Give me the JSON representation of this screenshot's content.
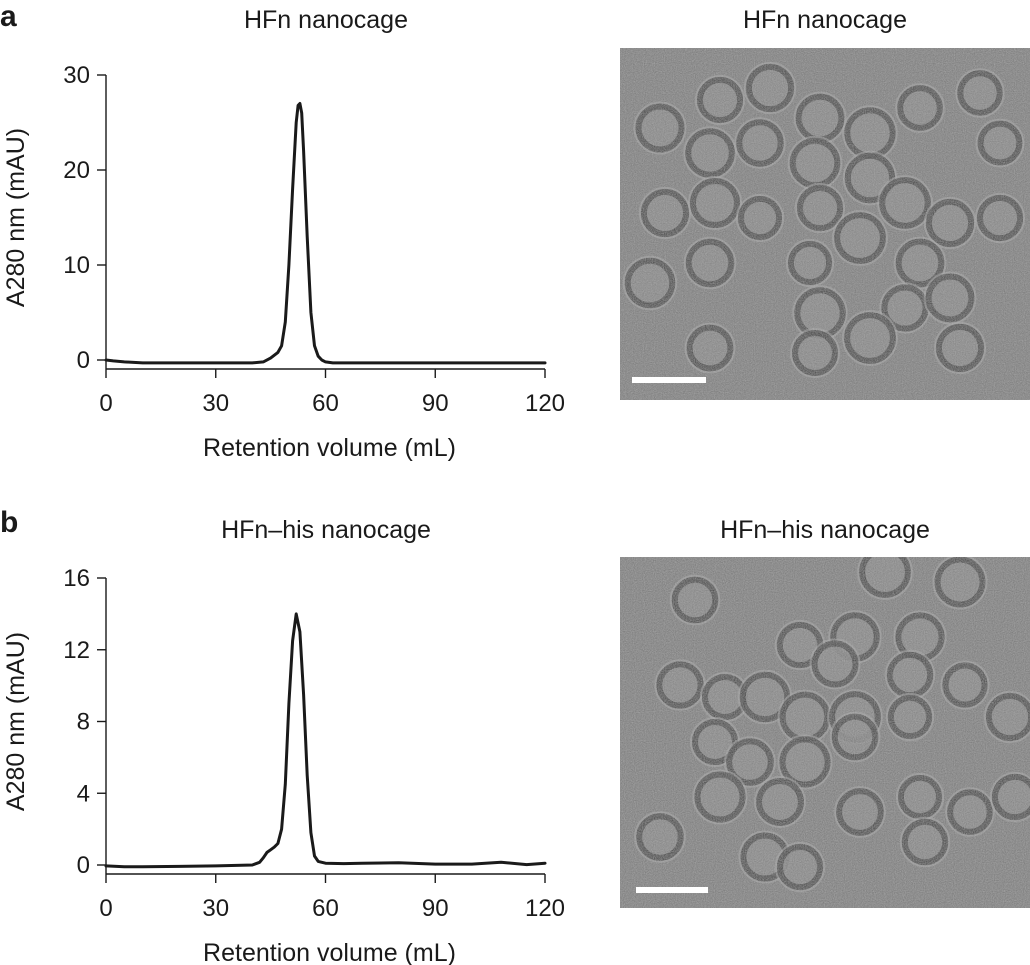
{
  "panels": [
    {
      "letter": "a",
      "chart_title": "HFn nanocage",
      "image_title": "HFn nanocage"
    },
    {
      "letter": "b",
      "chart_title": "HFn–his nanocage",
      "image_title": "HFn–his nanocage"
    }
  ],
  "chart_data": [
    {
      "type": "line",
      "title": "HFn nanocage",
      "xlabel": "Retention volume (mL)",
      "ylabel": "A280 nm (mAU)",
      "xlim": [
        0,
        120
      ],
      "ylim": [
        0,
        30
      ],
      "xticks": [
        "0",
        "30",
        "60",
        "90",
        "120"
      ],
      "yticks": [
        "0",
        "10",
        "20",
        "30"
      ],
      "grid": false,
      "series": [
        {
          "x": [
            0,
            2,
            5,
            10,
            20,
            30,
            40,
            43,
            45,
            47,
            48,
            49,
            50,
            51,
            52,
            52.5,
            53,
            53.5,
            54,
            55,
            56,
            57,
            58,
            59,
            60,
            62,
            70,
            80,
            90,
            100,
            110,
            120
          ],
          "y": [
            0,
            -0.1,
            -0.2,
            -0.3,
            -0.3,
            -0.3,
            -0.3,
            -0.2,
            0.2,
            0.8,
            1.5,
            4,
            10,
            18,
            25,
            26.8,
            27,
            26,
            22,
            13,
            5,
            1.5,
            0.4,
            0,
            -0.2,
            -0.3,
            -0.3,
            -0.3,
            -0.3,
            -0.3,
            -0.3,
            -0.3
          ]
        }
      ]
    },
    {
      "type": "line",
      "title": "HFn–his nanocage",
      "xlabel": "Retention volume (mL)",
      "ylabel": "A280 nm (mAU)",
      "xlim": [
        0,
        120
      ],
      "ylim": [
        0,
        16
      ],
      "xticks": [
        "0",
        "30",
        "60",
        "90",
        "120"
      ],
      "yticks": [
        "0",
        "4",
        "8",
        "12",
        "16"
      ],
      "grid": false,
      "series": [
        {
          "x": [
            0,
            5,
            10,
            20,
            30,
            40,
            42,
            43,
            44,
            45,
            46,
            47,
            48,
            49,
            50,
            51,
            52,
            53,
            54,
            55,
            56,
            57,
            58,
            60,
            65,
            70,
            80,
            90,
            100,
            108,
            115,
            120
          ],
          "y": [
            -0.05,
            -0.1,
            -0.1,
            -0.08,
            -0.05,
            0,
            0.15,
            0.4,
            0.7,
            0.85,
            1,
            1.2,
            2,
            4.5,
            9,
            12.5,
            14,
            13,
            9.5,
            5,
            1.8,
            0.5,
            0.2,
            0.1,
            0.08,
            0.1,
            0.12,
            0.05,
            0.05,
            0.15,
            0.02,
            0.1
          ]
        }
      ]
    }
  ]
}
